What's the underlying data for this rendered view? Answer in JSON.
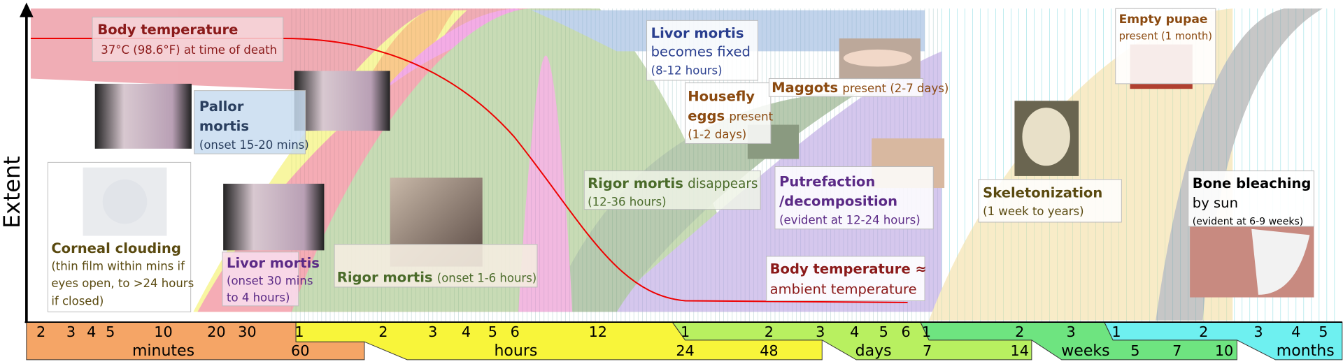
{
  "y_axis_label": "Extent",
  "labels": {
    "body_temperature": {
      "title": "Body temperature",
      "detail": "37°C (98.6°F) at time of death"
    },
    "pallor_mortis": {
      "title": [
        "Pallor",
        "mortis"
      ],
      "detail": "(onset 15-20 mins)"
    },
    "corneal_clouding": {
      "title": "Corneal clouding",
      "detail": [
        "(thin film within mins if",
        "eyes open, to >24 hours",
        "if closed)"
      ]
    },
    "livor_mortis": {
      "title": "Livor mortis",
      "detail": [
        "(onset 30 mins",
        "to 4 hours)"
      ]
    },
    "rigor_mortis": {
      "title": "Rigor mortis",
      "detail": "(onset 1-6 hours)"
    },
    "livor_fixed": {
      "title": "Livor mortis",
      "text": "becomes fixed",
      "detail": "(8-12 hours)"
    },
    "housefly_eggs": {
      "title": [
        "Housefly",
        "eggs"
      ],
      "text": "present",
      "detail": "(1-2 days)"
    },
    "maggots": {
      "title": "Maggots",
      "text": "present (2-7 days)"
    },
    "rigor_disappears": {
      "title": "Rigor mortis",
      "text": "disappears",
      "detail": "(12-36 hours)"
    },
    "putrefaction": {
      "title": [
        "Putrefaction",
        "/decomposition"
      ],
      "detail": "(evident at 12-24 hours)"
    },
    "ambient": {
      "title": "Body temperature ≈",
      "text": "ambient temperature"
    },
    "skeletonization": {
      "title": "Skeletonization",
      "detail": "(1 week to years)"
    },
    "empty_pupae": {
      "title": "Empty pupae",
      "text": "present (1 month)"
    },
    "bone_bleaching": {
      "title": "Bone bleaching",
      "text": "by sun",
      "detail": "(evident at 6-9 weeks)"
    }
  },
  "timeline": {
    "top_ticks": [
      "2",
      "3",
      "4",
      "5",
      "10",
      "20",
      "30",
      "1",
      "2",
      "3",
      "4",
      "5",
      "6",
      "12",
      "1",
      "2",
      "3",
      "4",
      "5",
      "6",
      "1",
      "2",
      "3",
      "1",
      "2",
      "3",
      "4",
      "5"
    ],
    "bottom_row": [
      "minutes",
      "60",
      "hours",
      "24",
      "48",
      "days",
      "7",
      "14",
      "weeks",
      "5",
      "7",
      "10",
      "months"
    ]
  }
}
